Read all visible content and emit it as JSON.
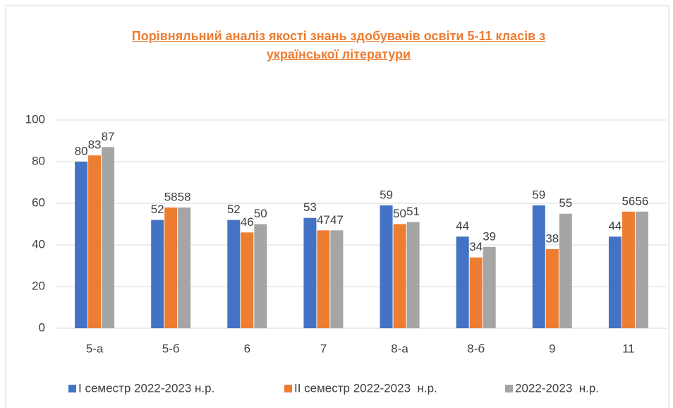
{
  "chart_data": {
    "type": "bar",
    "title": "Порівняльний аналіз якості знань здобувачів освіти 5-11 класів з української літератури",
    "categories": [
      "5-а",
      "5-б",
      "6",
      "7",
      "8-а",
      "8-б",
      "9",
      "11"
    ],
    "series": [
      {
        "name": "I семестр 2022-2023 н.р.",
        "color": "#4472c4",
        "values": [
          80,
          52,
          52,
          53,
          59,
          44,
          59,
          44
        ]
      },
      {
        "name": "II семестр 2022-2023  н.р.",
        "color": "#ed7d31",
        "values": [
          83,
          58,
          46,
          47,
          50,
          34,
          38,
          56
        ]
      },
      {
        "name": "2022-2023  н.р.",
        "color": "#a5a5a5",
        "values": [
          87,
          58,
          50,
          47,
          51,
          39,
          55,
          56
        ]
      }
    ],
    "ylim": [
      0,
      100
    ],
    "yticks": [
      0,
      20,
      40,
      60,
      80,
      100
    ],
    "grid": true,
    "legend": "bottom"
  }
}
